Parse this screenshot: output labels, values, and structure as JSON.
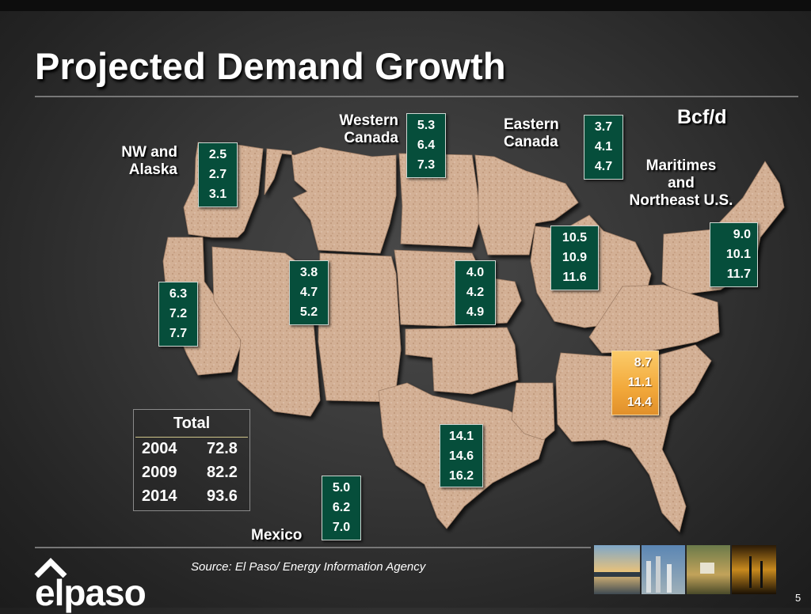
{
  "title": "Projected Demand Growth",
  "unit": "Bcf/d",
  "regions": {
    "western_canada": "Western\nCanada",
    "eastern_canada": "Eastern\nCanada",
    "nw_alaska": "NW and\nAlaska",
    "maritimes": "Maritimes\nand\nNortheast U.S.",
    "mexico": "Mexico"
  },
  "boxes": {
    "western_canada": [
      "5.3",
      "6.4",
      "7.3"
    ],
    "eastern_canada": [
      "3.7",
      "4.1",
      "4.7"
    ],
    "nw_alaska": [
      "2.5",
      "2.7",
      "3.1"
    ],
    "california": [
      "6.3",
      "7.2",
      "7.7"
    ],
    "rockies": [
      "3.8",
      "4.7",
      "5.2"
    ],
    "midcontinent": [
      "4.0",
      "4.2",
      "4.9"
    ],
    "midwest": [
      "10.5",
      "10.9",
      "11.6"
    ],
    "northeast": [
      "9.0",
      "10.1",
      "11.7"
    ],
    "southeast": [
      "8.7",
      "11.1",
      "14.4"
    ],
    "texas_gulf": [
      "14.1",
      "14.6",
      "16.2"
    ],
    "mexico": [
      "5.0",
      "6.2",
      "7.0"
    ]
  },
  "total": {
    "heading": "Total",
    "rows": [
      {
        "year": "2004",
        "value": "72.8"
      },
      {
        "year": "2009",
        "value": "82.2"
      },
      {
        "year": "2014",
        "value": "93.6"
      }
    ]
  },
  "source": "Source: El Paso/ Energy Information Agency",
  "logo": "elpaso",
  "page_number": "5",
  "colors": {
    "box_green": "#064e3b",
    "box_gold": "#f2a83a",
    "map_fill": "#d1ad92",
    "background": "#363636"
  }
}
